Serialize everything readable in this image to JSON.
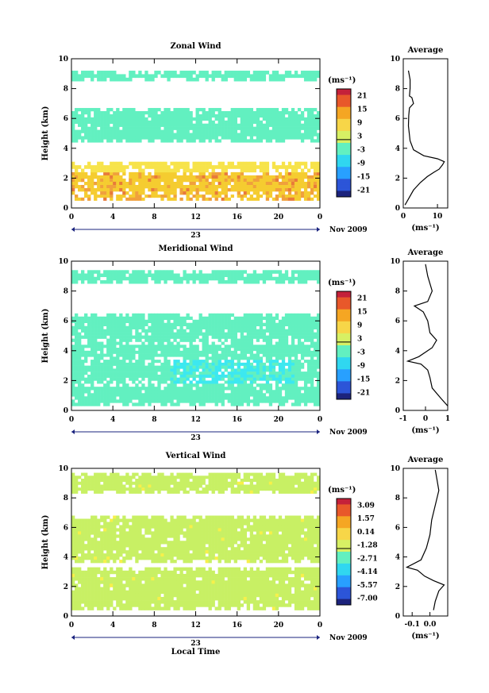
{
  "chart_data": [
    {
      "type": "heatmap",
      "title": "Zonal Wind",
      "ylabel": "Height (km)",
      "ylim": [
        0,
        10
      ],
      "yticks": [
        "0",
        "2",
        "4",
        "6",
        "8",
        "10"
      ],
      "xticks": [
        "0",
        "4",
        "8",
        "12",
        "16",
        "20",
        "0"
      ],
      "date_day": "23",
      "date_month": "Nov 2009",
      "colorbar_unit": "(ms⁻¹)",
      "colorbar_ticks": [
        "21",
        "15",
        "9",
        "3",
        "-3",
        "-9",
        "-15",
        "-21"
      ],
      "layers": [
        {
          "ymin": 0.5,
          "ymax": 0.9,
          "value": 12
        },
        {
          "ymin": 0.9,
          "ymax": 2.4,
          "value": 13
        },
        {
          "ymin": 2.4,
          "ymax": 3.1,
          "value": 8
        },
        {
          "ymin": 3.1,
          "ymax": 4.4,
          "value": null
        },
        {
          "ymin": 4.4,
          "ymax": 6.7,
          "value": 1
        },
        {
          "ymin": 8.5,
          "ymax": 9.2,
          "value": 1
        }
      ],
      "profile": {
        "title": "Average",
        "xlabel": "(ms⁻¹)",
        "xlim": [
          0,
          13
        ],
        "xticks": [
          "0",
          "10"
        ],
        "ylim": [
          0,
          10
        ],
        "yticks": [
          "0",
          "2",
          "4",
          "6",
          "8",
          "10"
        ],
        "points": [
          [
            0.5,
            0.2
          ],
          [
            1.5,
            0.6
          ],
          [
            3,
            1.2
          ],
          [
            5,
            1.7
          ],
          [
            7,
            2.1
          ],
          [
            9,
            2.4
          ],
          [
            10.5,
            2.6
          ],
          [
            11.5,
            2.9
          ],
          [
            12,
            3.1
          ],
          [
            10,
            3.3
          ],
          [
            6,
            3.5
          ],
          [
            3,
            3.9
          ],
          [
            2,
            4.5
          ],
          [
            1.5,
            5.5
          ],
          [
            1.6,
            6.2
          ],
          [
            1.8,
            6.7
          ],
          [
            3,
            7.0
          ],
          [
            2.5,
            7.4
          ],
          [
            1.8,
            7.5
          ],
          [
            2,
            8
          ],
          [
            2,
            8.6
          ],
          [
            1.5,
            9.2
          ]
        ]
      }
    },
    {
      "type": "heatmap",
      "title": "Meridional Wind",
      "ylabel": "Height (km)",
      "ylim": [
        0,
        10
      ],
      "yticks": [
        "0",
        "2",
        "4",
        "6",
        "8",
        "10"
      ],
      "xticks": [
        "0",
        "4",
        "8",
        "12",
        "16",
        "20",
        "0"
      ],
      "date_day": "23",
      "date_month": "Nov 2009",
      "colorbar_unit": "(ms⁻¹)",
      "colorbar_ticks": [
        "21",
        "15",
        "9",
        "3",
        "-3",
        "-9",
        "-15",
        "-21"
      ],
      "layers": [
        {
          "ymin": 0.3,
          "ymax": 1.8,
          "value": 1
        },
        {
          "ymin": 1.8,
          "ymax": 3.4,
          "value": 0.5
        },
        {
          "ymin": 3.4,
          "ymax": 4.6,
          "value": 0
        },
        {
          "ymin": 4.6,
          "ymax": 6.5,
          "value": 0
        },
        {
          "ymin": 8.5,
          "ymax": 9.4,
          "value": 0
        }
      ],
      "profile": {
        "title": "Average",
        "xlabel": "(ms⁻¹)",
        "xlim": [
          -1,
          1
        ],
        "xticks": [
          "-1",
          "0",
          "1"
        ],
        "ylim": [
          0,
          10
        ],
        "yticks": [
          "0",
          "2",
          "4",
          "6",
          "8",
          "10"
        ],
        "points": [
          [
            1,
            0.3
          ],
          [
            0.7,
            0.8
          ],
          [
            0.3,
            1.5
          ],
          [
            0.2,
            2.2
          ],
          [
            0.1,
            2.7
          ],
          [
            -0.2,
            3.1
          ],
          [
            -0.8,
            3.3
          ],
          [
            -0.3,
            3.6
          ],
          [
            0.3,
            4.2
          ],
          [
            0.5,
            4.7
          ],
          [
            0.2,
            5.2
          ],
          [
            0.1,
            6
          ],
          [
            -0.1,
            6.6
          ],
          [
            -0.5,
            7
          ],
          [
            0.1,
            7.3
          ],
          [
            0.3,
            8
          ],
          [
            0.1,
            9
          ],
          [
            0,
            9.8
          ]
        ]
      }
    },
    {
      "type": "heatmap",
      "title": "Vertical Wind",
      "ylabel": "Height (km)",
      "xlabel": "Local Time",
      "ylim": [
        0,
        10
      ],
      "yticks": [
        "0",
        "2",
        "4",
        "6",
        "8",
        "10"
      ],
      "xticks": [
        "0",
        "4",
        "8",
        "12",
        "16",
        "20",
        "0"
      ],
      "date_day": "23",
      "date_month": "Nov 2009",
      "colorbar_unit": "(ms⁻¹)",
      "colorbar_ticks": [
        "3.09",
        "1.57",
        "0.14",
        "-1.28",
        "-2.71",
        "-4.14",
        "-5.57",
        "-7.00"
      ],
      "layers": [
        {
          "ymin": 0.4,
          "ymax": 3.3,
          "value": 0.4
        },
        {
          "ymin": 3.6,
          "ymax": 6.8,
          "value": 0.3
        },
        {
          "ymin": 8.3,
          "ymax": 9.7,
          "value": 0.3
        }
      ],
      "profile": {
        "title": "Average",
        "xlabel": "(ms⁻¹)",
        "xlim": [
          -0.15,
          0.1
        ],
        "xticks": [
          "-0.1",
          "0.0"
        ],
        "ylim": [
          0,
          10
        ],
        "yticks": [
          "0",
          "2",
          "4",
          "6",
          "8",
          "10"
        ],
        "points": [
          [
            0.02,
            0.4
          ],
          [
            0.03,
            1
          ],
          [
            0.05,
            1.7
          ],
          [
            0.08,
            2.1
          ],
          [
            0.02,
            2.4
          ],
          [
            -0.03,
            2.7
          ],
          [
            -0.07,
            3.1
          ],
          [
            -0.13,
            3.3
          ],
          [
            -0.05,
            3.8
          ],
          [
            -0.02,
            4.6
          ],
          [
            0,
            5.5
          ],
          [
            0.01,
            6.5
          ],
          [
            0.03,
            7.5
          ],
          [
            0.05,
            8.5
          ],
          [
            0.04,
            9.2
          ],
          [
            0.03,
            9.9
          ]
        ]
      }
    }
  ]
}
